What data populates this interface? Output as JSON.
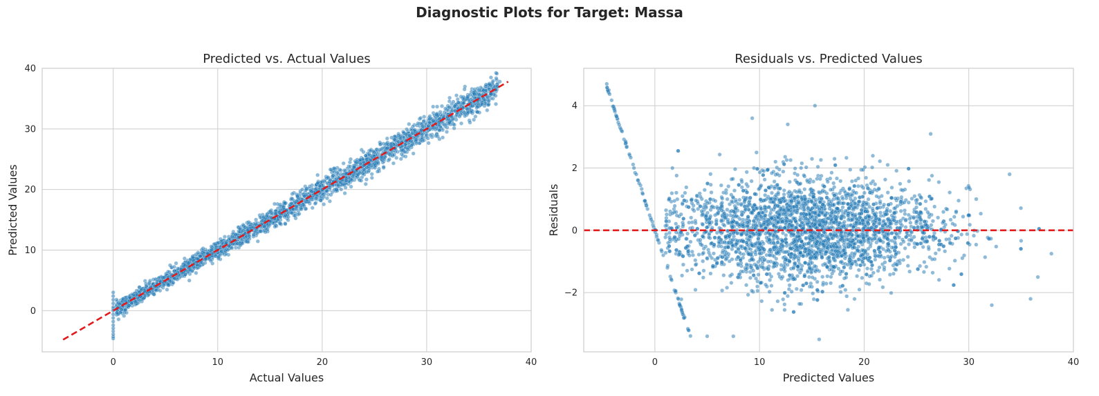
{
  "figure": {
    "suptitle": "Diagnostic Plots for Target: Massa"
  },
  "chart_data": [
    {
      "type": "scatter",
      "title": "Predicted vs. Actual Values",
      "xlabel": "Actual Values",
      "ylabel": "Predicted Values",
      "xlim": [
        -6.8,
        40
      ],
      "ylim": [
        -6.8,
        40
      ],
      "xticks": [
        0,
        10,
        20,
        30,
        40
      ],
      "yticks": [
        0,
        10,
        20,
        30,
        40
      ],
      "grid": true,
      "point_color": "#1f77b4",
      "reference_line": {
        "x": [
          -4.8,
          37.8
        ],
        "y": [
          -4.8,
          37.8
        ],
        "color": "#e31a1c",
        "style": "dashed"
      },
      "series": [
        {
          "kind": "band",
          "description_points": [
            {
              "x": 0,
              "y": 0.3
            },
            {
              "x": 1,
              "y": 1.1
            },
            {
              "x": 2,
              "y": 2.0
            },
            {
              "x": 4,
              "y": 4.0
            },
            {
              "x": 6,
              "y": 6.1
            },
            {
              "x": 8,
              "y": 8.0
            },
            {
              "x": 10,
              "y": 10.0
            },
            {
              "x": 12,
              "y": 12.1
            },
            {
              "x": 14,
              "y": 14.0
            },
            {
              "x": 16,
              "y": 16.0
            },
            {
              "x": 18,
              "y": 18.0
            },
            {
              "x": 20,
              "y": 20.0
            },
            {
              "x": 22,
              "y": 22.0
            },
            {
              "x": 24,
              "y": 24.0
            },
            {
              "x": 26,
              "y": 26.0
            },
            {
              "x": 28,
              "y": 28.0
            },
            {
              "x": 30,
              "y": 30.0
            },
            {
              "x": 32,
              "y": 32.0
            },
            {
              "x": 34,
              "y": 34.0
            },
            {
              "x": 35,
              "y": 36.4
            },
            {
              "x": 37,
              "y": 37.8
            }
          ],
          "zero_actual_predicted": [
            -4.6,
            -4.3,
            -3.9,
            -3.4,
            -2.9,
            -2.4,
            -1.8,
            -1.2,
            -0.6,
            0.0,
            0.6,
            1.2,
            1.8,
            2.4,
            3.0
          ]
        }
      ]
    },
    {
      "type": "scatter",
      "title": "Residuals vs. Predicted Values",
      "xlabel": "Predicted Values",
      "ylabel": "Residuals",
      "xlim": [
        -6.8,
        40
      ],
      "ylim": [
        -3.9,
        5.2
      ],
      "xticks": [
        0,
        10,
        20,
        30,
        40
      ],
      "yticks": [
        -2,
        0,
        2,
        4
      ],
      "ytick_labels": [
        "−2",
        "0",
        "2",
        "4"
      ],
      "grid": true,
      "point_color": "#1f77b4",
      "reference_line": {
        "y": 0,
        "color": "#e31a1c",
        "style": "dashed"
      },
      "series": [
        {
          "kind": "cloud",
          "center_x": 14.5,
          "residual_spread": 1.0,
          "x_range": [
            1,
            38
          ]
        },
        {
          "kind": "diagonal",
          "points": [
            {
              "x": -4.6,
              "y": 4.7
            },
            {
              "x": -4.4,
              "y": 4.5
            },
            {
              "x": -3.9,
              "y": 3.9
            },
            {
              "x": -3.6,
              "y": 3.6
            },
            {
              "x": -3.2,
              "y": 3.2
            },
            {
              "x": -2.8,
              "y": 2.8
            },
            {
              "x": -2.4,
              "y": 2.4
            },
            {
              "x": -2.0,
              "y": 2.0
            },
            {
              "x": -1.6,
              "y": 1.6
            },
            {
              "x": -1.2,
              "y": 1.2
            },
            {
              "x": -0.8,
              "y": 0.8
            },
            {
              "x": -0.4,
              "y": 0.4
            },
            {
              "x": 0.0,
              "y": 0.0
            },
            {
              "x": 0.4,
              "y": -0.4
            },
            {
              "x": 0.8,
              "y": -0.8
            },
            {
              "x": 1.2,
              "y": -1.2
            },
            {
              "x": 1.6,
              "y": -1.6
            },
            {
              "x": 2.0,
              "y": -2.0
            },
            {
              "x": 2.4,
              "y": -2.4
            },
            {
              "x": 2.8,
              "y": -2.8
            },
            {
              "x": 3.2,
              "y": -3.2
            }
          ]
        },
        {
          "kind": "outliers",
          "points": [
            {
              "x": 15.3,
              "y": 4.0
            },
            {
              "x": 9.3,
              "y": 3.6
            },
            {
              "x": 12.7,
              "y": 3.4
            },
            {
              "x": 33.9,
              "y": 1.8
            },
            {
              "x": 37.9,
              "y": -0.75
            },
            {
              "x": 36.6,
              "y": -1.5
            },
            {
              "x": 35.9,
              "y": -2.2
            },
            {
              "x": 32.2,
              "y": -2.4
            },
            {
              "x": 15.7,
              "y": -3.5
            },
            {
              "x": 7.5,
              "y": -3.4
            },
            {
              "x": 5.0,
              "y": -3.4
            }
          ]
        }
      ]
    }
  ]
}
